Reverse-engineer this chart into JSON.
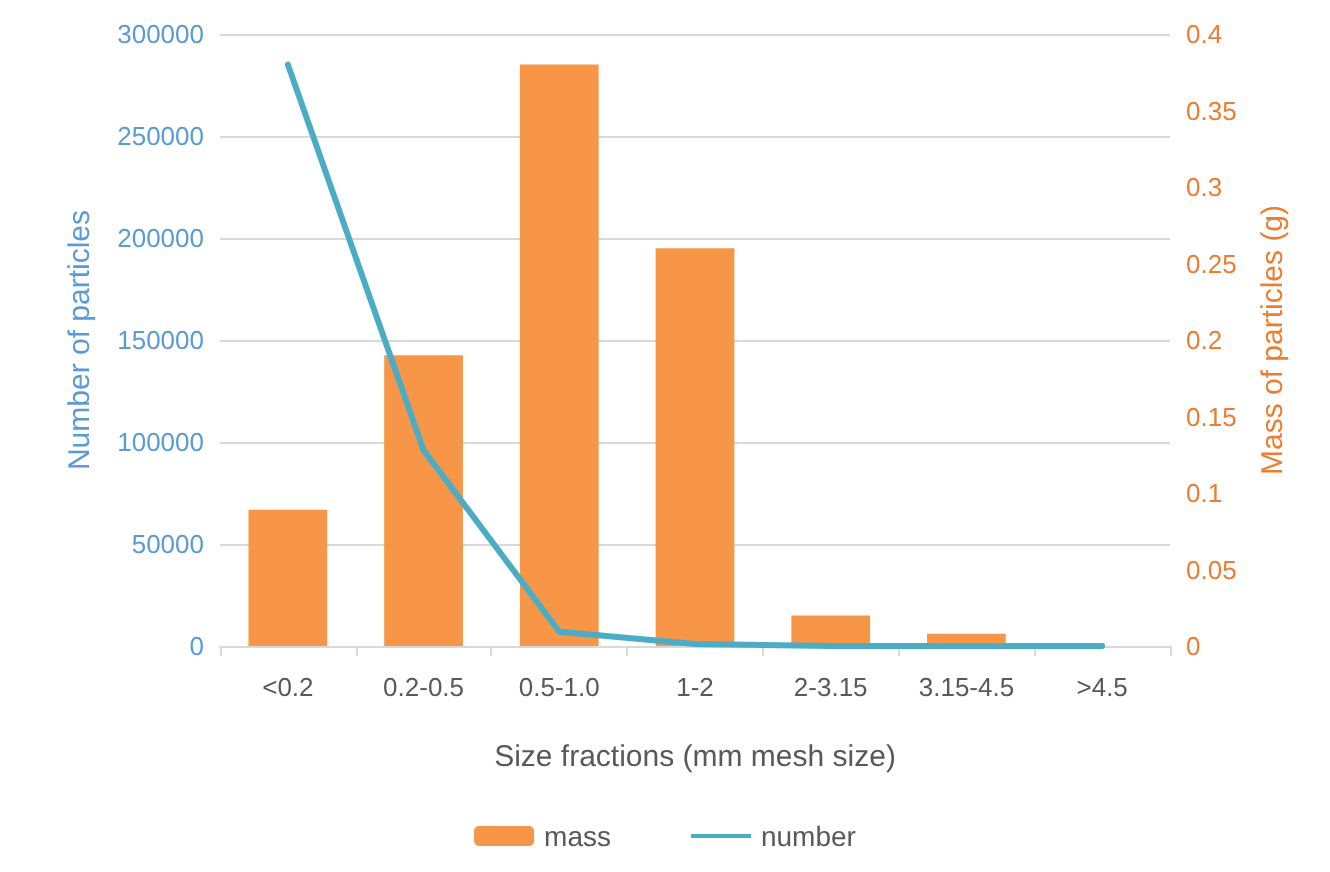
{
  "chart_data": {
    "type": "bar",
    "xlabel": "Size fractions (mm mesh size)",
    "ylabel": "Number of particles",
    "y2label": "Mass of particles (g)",
    "categories": [
      "<0.2",
      "0.2-0.5",
      "0.5-1.0",
      "1-2",
      "2-3.15",
      "3.15-4.5",
      ">4.5"
    ],
    "series": [
      {
        "name": "mass",
        "axis": "y2",
        "color": "#f79646",
        "values": [
          0.089,
          0.19,
          0.38,
          0.26,
          0.02,
          0.008,
          0
        ]
      },
      {
        "name": "number",
        "type": "line",
        "color": "#4bacc6",
        "values": [
          285000,
          96000,
          7000,
          1000,
          0,
          0,
          0
        ]
      }
    ],
    "ylim": [
      0,
      300000
    ],
    "yticks": [
      0,
      50000,
      100000,
      150000,
      200000,
      250000,
      300000
    ],
    "y2lim": [
      0,
      0.4
    ],
    "y2ticks": [
      0,
      0.05,
      0.1,
      0.15,
      0.2,
      0.25,
      0.3,
      0.35,
      0.4
    ],
    "grid": "y",
    "legend": "bottom",
    "marker": "none",
    "line_style": "solid"
  }
}
